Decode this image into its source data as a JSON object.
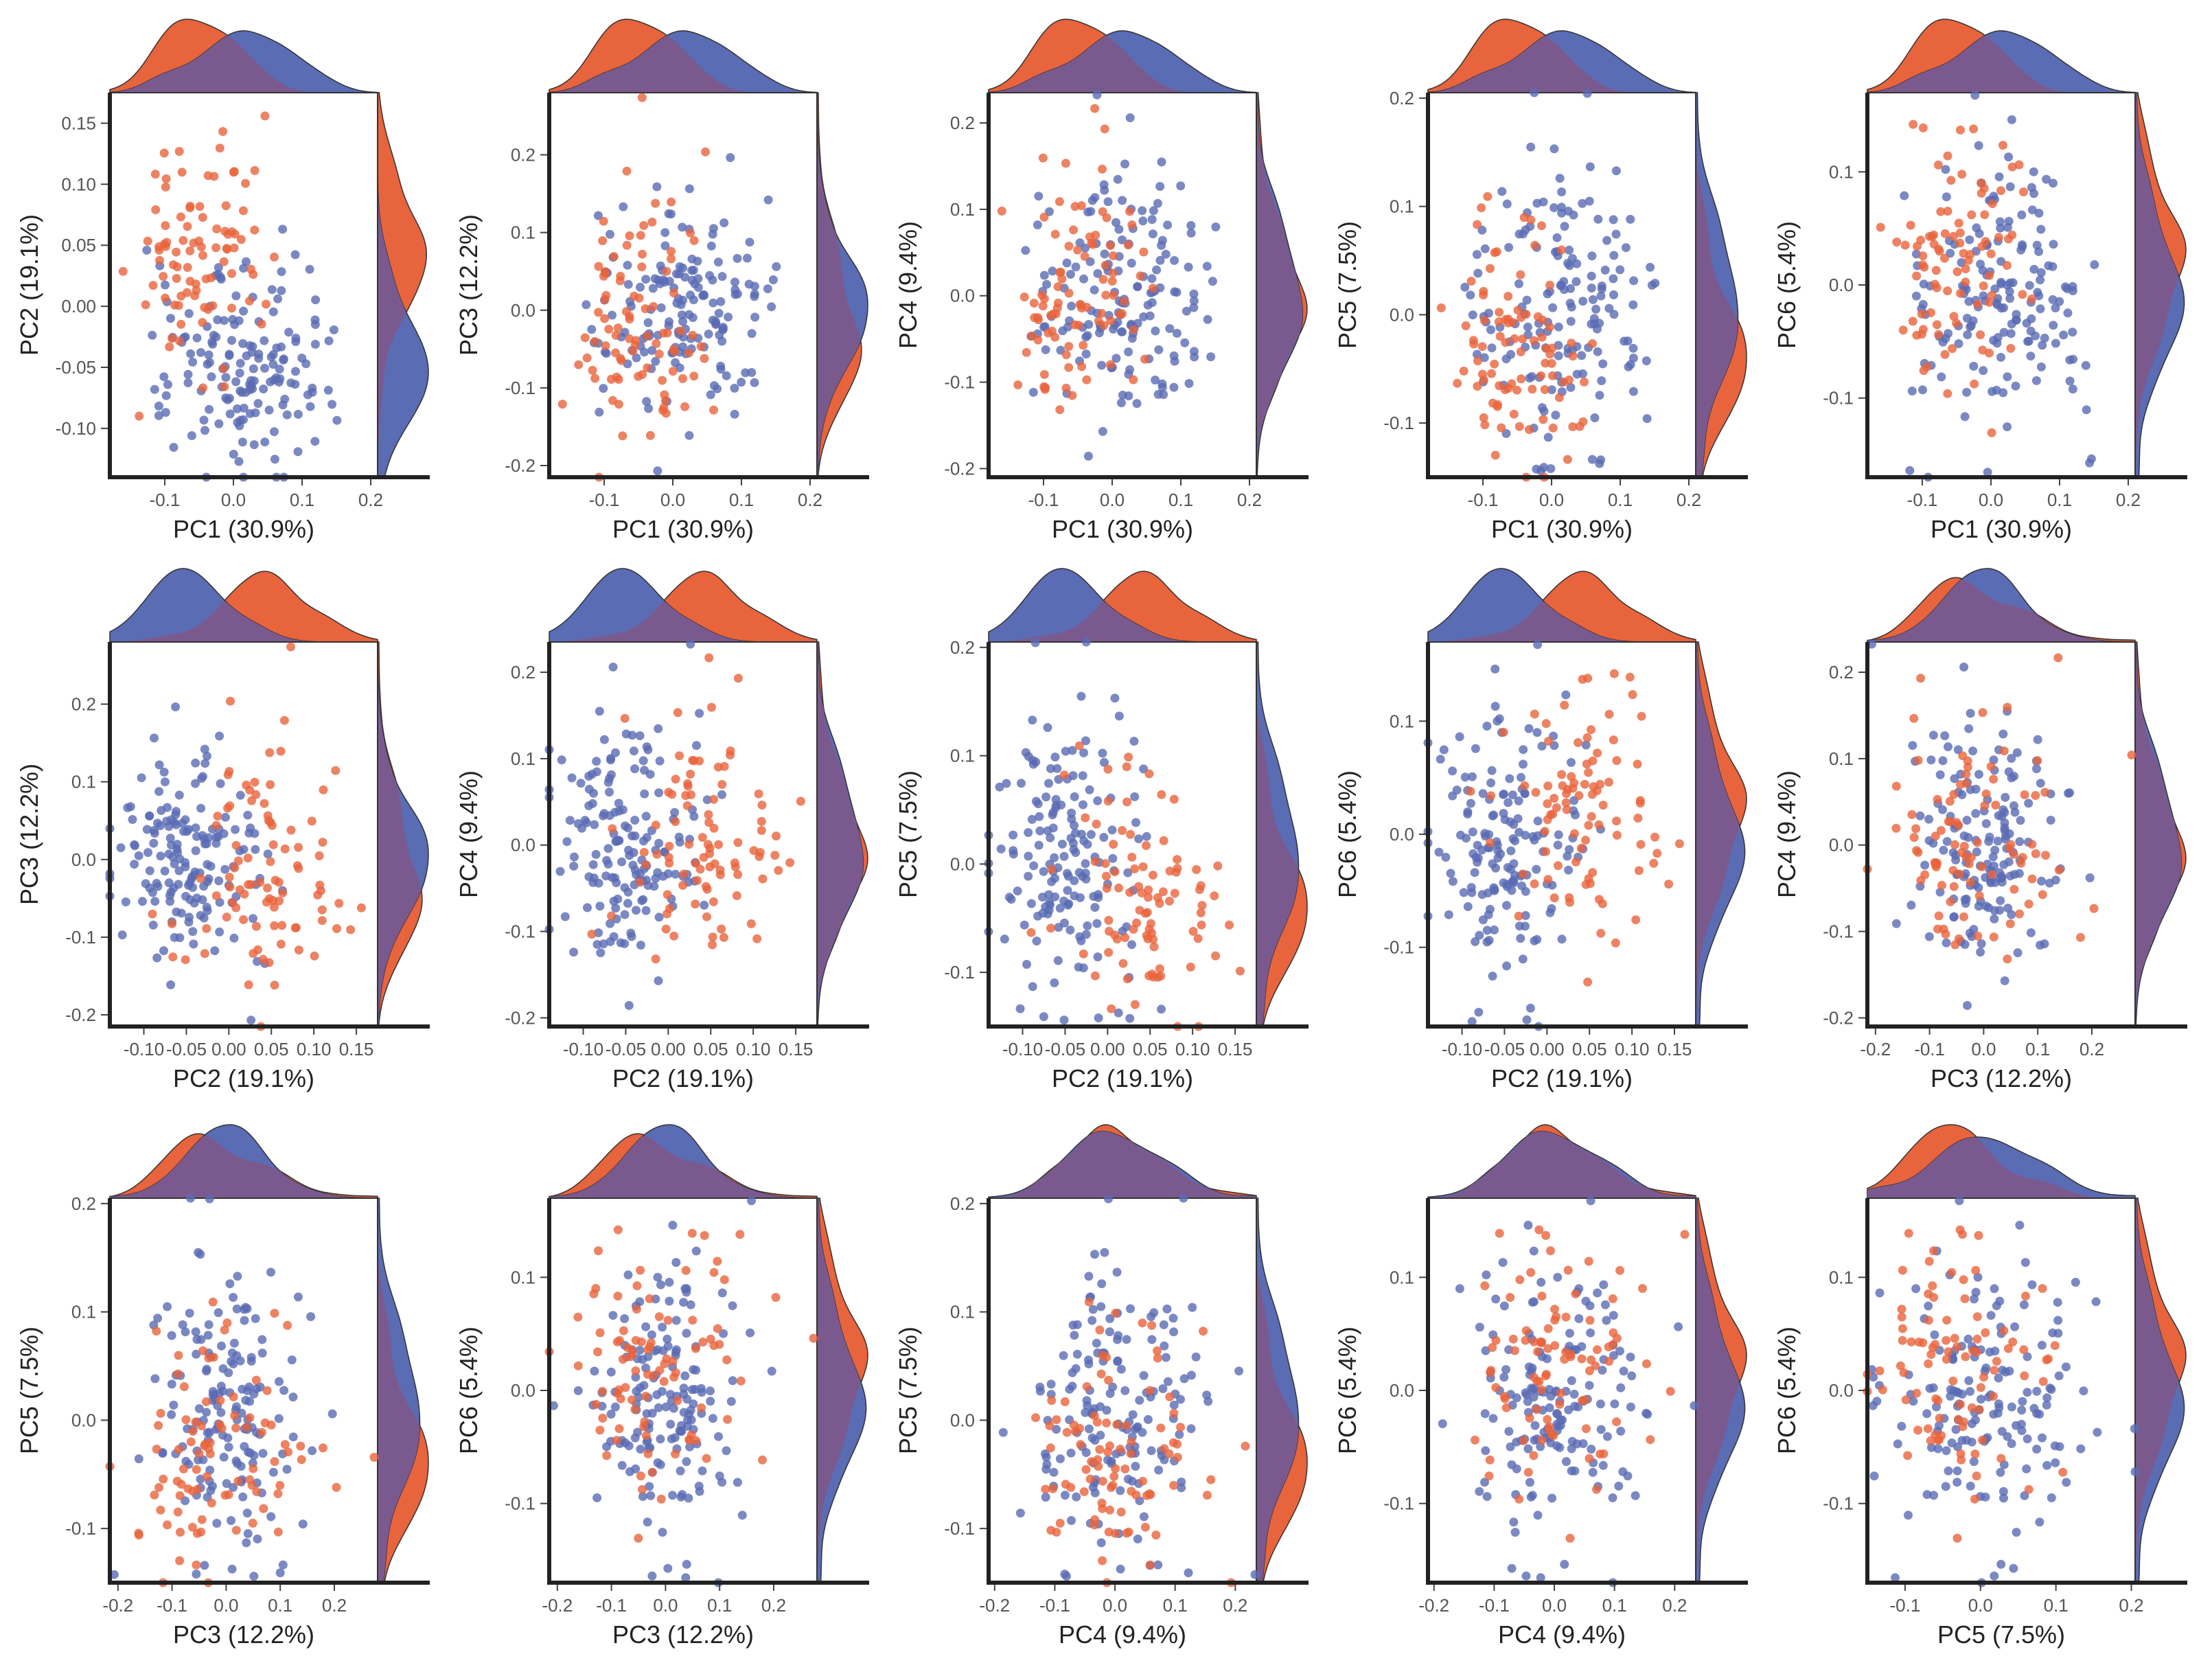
{
  "colors": {
    "group_red": "#E8643C",
    "group_blue": "#5A6CB4",
    "overlap": "#7A5A8E"
  },
  "labels": {
    "PC1": "PC1 (30.9%)",
    "PC2": "PC2 (19.1%)",
    "PC3": "PC3 (12.2%)",
    "PC4": "PC4 (9.4%)",
    "PC5": "PC5 (7.5%)",
    "PC6": "PC6 (5.4%)"
  },
  "ranges": {
    "PC1": [
      -0.18,
      0.21
    ],
    "PC2": [
      -0.14,
      0.175
    ],
    "PC3": [
      -0.215,
      0.28
    ],
    "PC4": [
      -0.21,
      0.235
    ],
    "PC5": [
      -0.15,
      0.205
    ],
    "PC6": [
      -0.17,
      0.17
    ]
  },
  "ticks": {
    "PC1": [
      "-0.1",
      "0.0",
      "0.1",
      "0.2"
    ],
    "PC2": [
      "-0.10",
      "-0.05",
      "0.00",
      "0.05",
      "0.10",
      "0.15"
    ],
    "PC3": [
      "-0.2",
      "-0.1",
      "0.0",
      "0.1",
      "0.2"
    ],
    "PC4": [
      "-0.2",
      "-0.1",
      "0.0",
      "0.1",
      "0.2"
    ],
    "PC5": [
      "-0.1",
      "0.0",
      "0.1",
      "0.2"
    ],
    "PC6": [
      "-0.1",
      "0.0",
      "0.1"
    ]
  },
  "group_stats": {
    "red": {
      "n": 90,
      "mean": {
        "PC1": -0.05,
        "PC2": 0.045,
        "PC3": -0.01,
        "PC4": 0.005,
        "PC5": -0.025,
        "PC6": 0.02
      },
      "sd": {
        "PC1": 0.045,
        "PC2": 0.05,
        "PC3": 0.08,
        "PC4": 0.08,
        "PC5": 0.06,
        "PC6": 0.06
      }
    },
    "blue": {
      "n": 160,
      "mean": {
        "PC1": 0.02,
        "PC2": -0.045,
        "PC3": 0.0,
        "PC4": -0.005,
        "PC5": 0.01,
        "PC6": -0.01
      },
      "sd": {
        "PC1": 0.06,
        "PC2": 0.045,
        "PC3": 0.07,
        "PC4": 0.075,
        "PC5": 0.065,
        "PC6": 0.065
      }
    }
  },
  "chart_data": [
    {
      "type": "scatter",
      "x": "PC1",
      "y": "PC2",
      "xlabel": "PC1 (30.9%)",
      "ylabel": "PC2 (19.1%)",
      "marginal": "density"
    },
    {
      "type": "scatter",
      "x": "PC1",
      "y": "PC3",
      "xlabel": "PC1 (30.9%)",
      "ylabel": "PC3 (12.2%)",
      "marginal": "density"
    },
    {
      "type": "scatter",
      "x": "PC1",
      "y": "PC4",
      "xlabel": "PC1 (30.9%)",
      "ylabel": "PC4 (9.4%)",
      "marginal": "density"
    },
    {
      "type": "scatter",
      "x": "PC1",
      "y": "PC5",
      "xlabel": "PC1 (30.9%)",
      "ylabel": "PC5 (7.5%)",
      "marginal": "density"
    },
    {
      "type": "scatter",
      "x": "PC1",
      "y": "PC6",
      "xlabel": "PC1 (30.9%)",
      "ylabel": "PC6 (5.4%)",
      "marginal": "density"
    },
    {
      "type": "scatter",
      "x": "PC2",
      "y": "PC3",
      "xlabel": "PC2 (19.1%)",
      "ylabel": "PC3 (12.2%)",
      "marginal": "density"
    },
    {
      "type": "scatter",
      "x": "PC2",
      "y": "PC4",
      "xlabel": "PC2 (19.1%)",
      "ylabel": "PC4 (9.4%)",
      "marginal": "density"
    },
    {
      "type": "scatter",
      "x": "PC2",
      "y": "PC5",
      "xlabel": "PC2 (19.1%)",
      "ylabel": "PC5 (7.5%)",
      "marginal": "density"
    },
    {
      "type": "scatter",
      "x": "PC2",
      "y": "PC6",
      "xlabel": "PC2 (19.1%)",
      "ylabel": "PC6 (5.4%)",
      "marginal": "density"
    },
    {
      "type": "scatter",
      "x": "PC3",
      "y": "PC4",
      "xlabel": "PC3 (12.2%)",
      "ylabel": "PC4 (9.4%)",
      "marginal": "density"
    },
    {
      "type": "scatter",
      "x": "PC3",
      "y": "PC5",
      "xlabel": "PC3 (12.2%)",
      "ylabel": "PC5 (7.5%)",
      "marginal": "density"
    },
    {
      "type": "scatter",
      "x": "PC3",
      "y": "PC6",
      "xlabel": "PC3 (12.2%)",
      "ylabel": "PC6 (5.4%)",
      "marginal": "density"
    },
    {
      "type": "scatter",
      "x": "PC4",
      "y": "PC5",
      "xlabel": "PC4 (9.4%)",
      "ylabel": "PC5 (7.5%)",
      "marginal": "density"
    },
    {
      "type": "scatter",
      "x": "PC4",
      "y": "PC6",
      "xlabel": "PC4 (9.4%)",
      "ylabel": "PC6 (5.4%)",
      "marginal": "density"
    },
    {
      "type": "scatter",
      "x": "PC5",
      "y": "PC6",
      "xlabel": "PC5 (7.5%)",
      "ylabel": "PC6 (5.4%)",
      "marginal": "density"
    }
  ]
}
